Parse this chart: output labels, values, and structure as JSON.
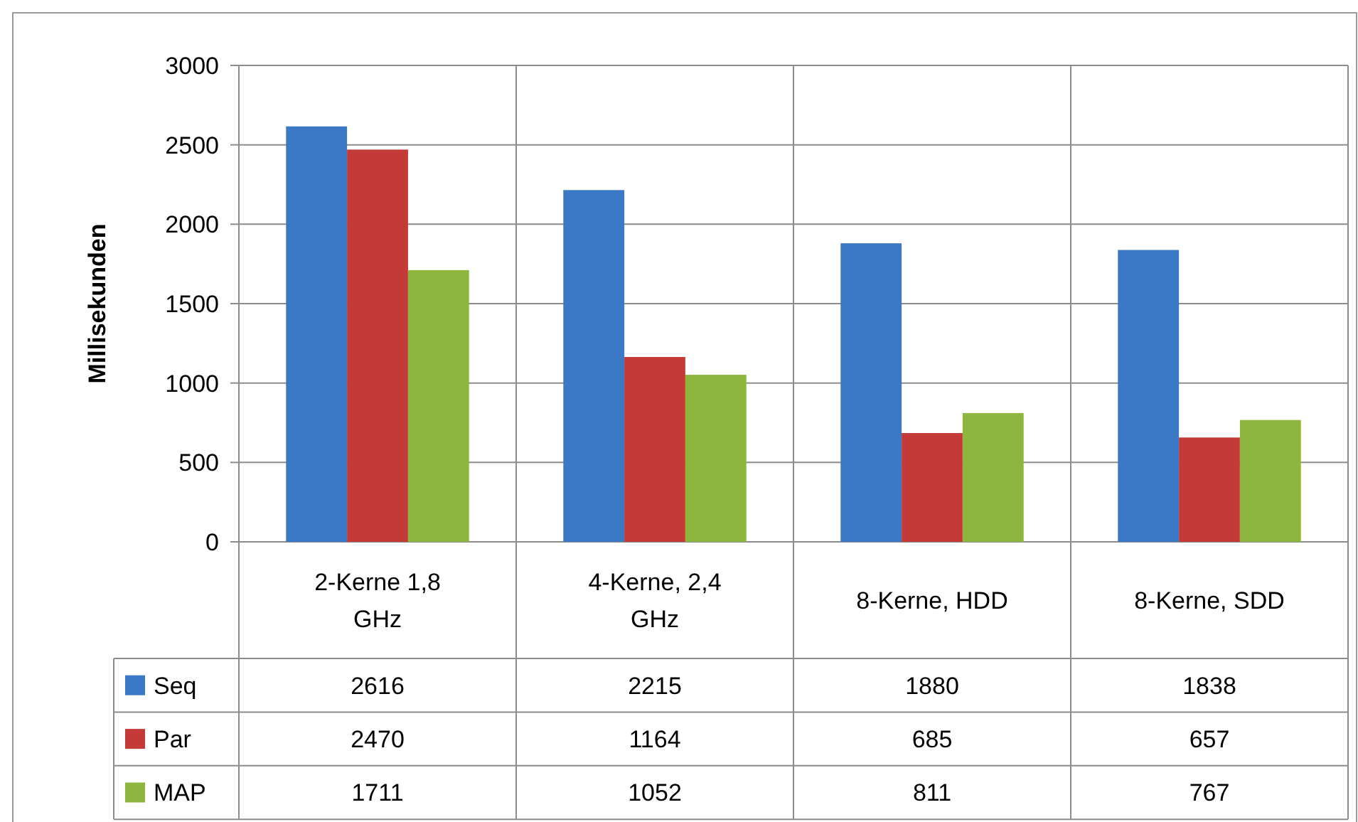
{
  "chart_data": {
    "type": "bar",
    "ylabel": "Millisekunden",
    "categories": [
      "2-Kerne 1,8 GHz",
      "4-Kerne, 2,4 GHz",
      "8-Kerne, HDD",
      "8-Kerne, SDD"
    ],
    "series": [
      {
        "name": "Seq",
        "color": "#3b78c6",
        "values": [
          2616,
          2215,
          1880,
          1838
        ]
      },
      {
        "name": "Par",
        "color": "#c33a37",
        "values": [
          2470,
          1164,
          685,
          657
        ]
      },
      {
        "name": "MAP",
        "color": "#8db63f",
        "values": [
          1711,
          1052,
          811,
          767
        ]
      }
    ],
    "ylim": [
      0,
      3000
    ],
    "yticks": [
      0,
      500,
      1000,
      1500,
      2000,
      2500,
      3000
    ],
    "grid": "y",
    "data_labels": true,
    "legend": "bottom left"
  }
}
